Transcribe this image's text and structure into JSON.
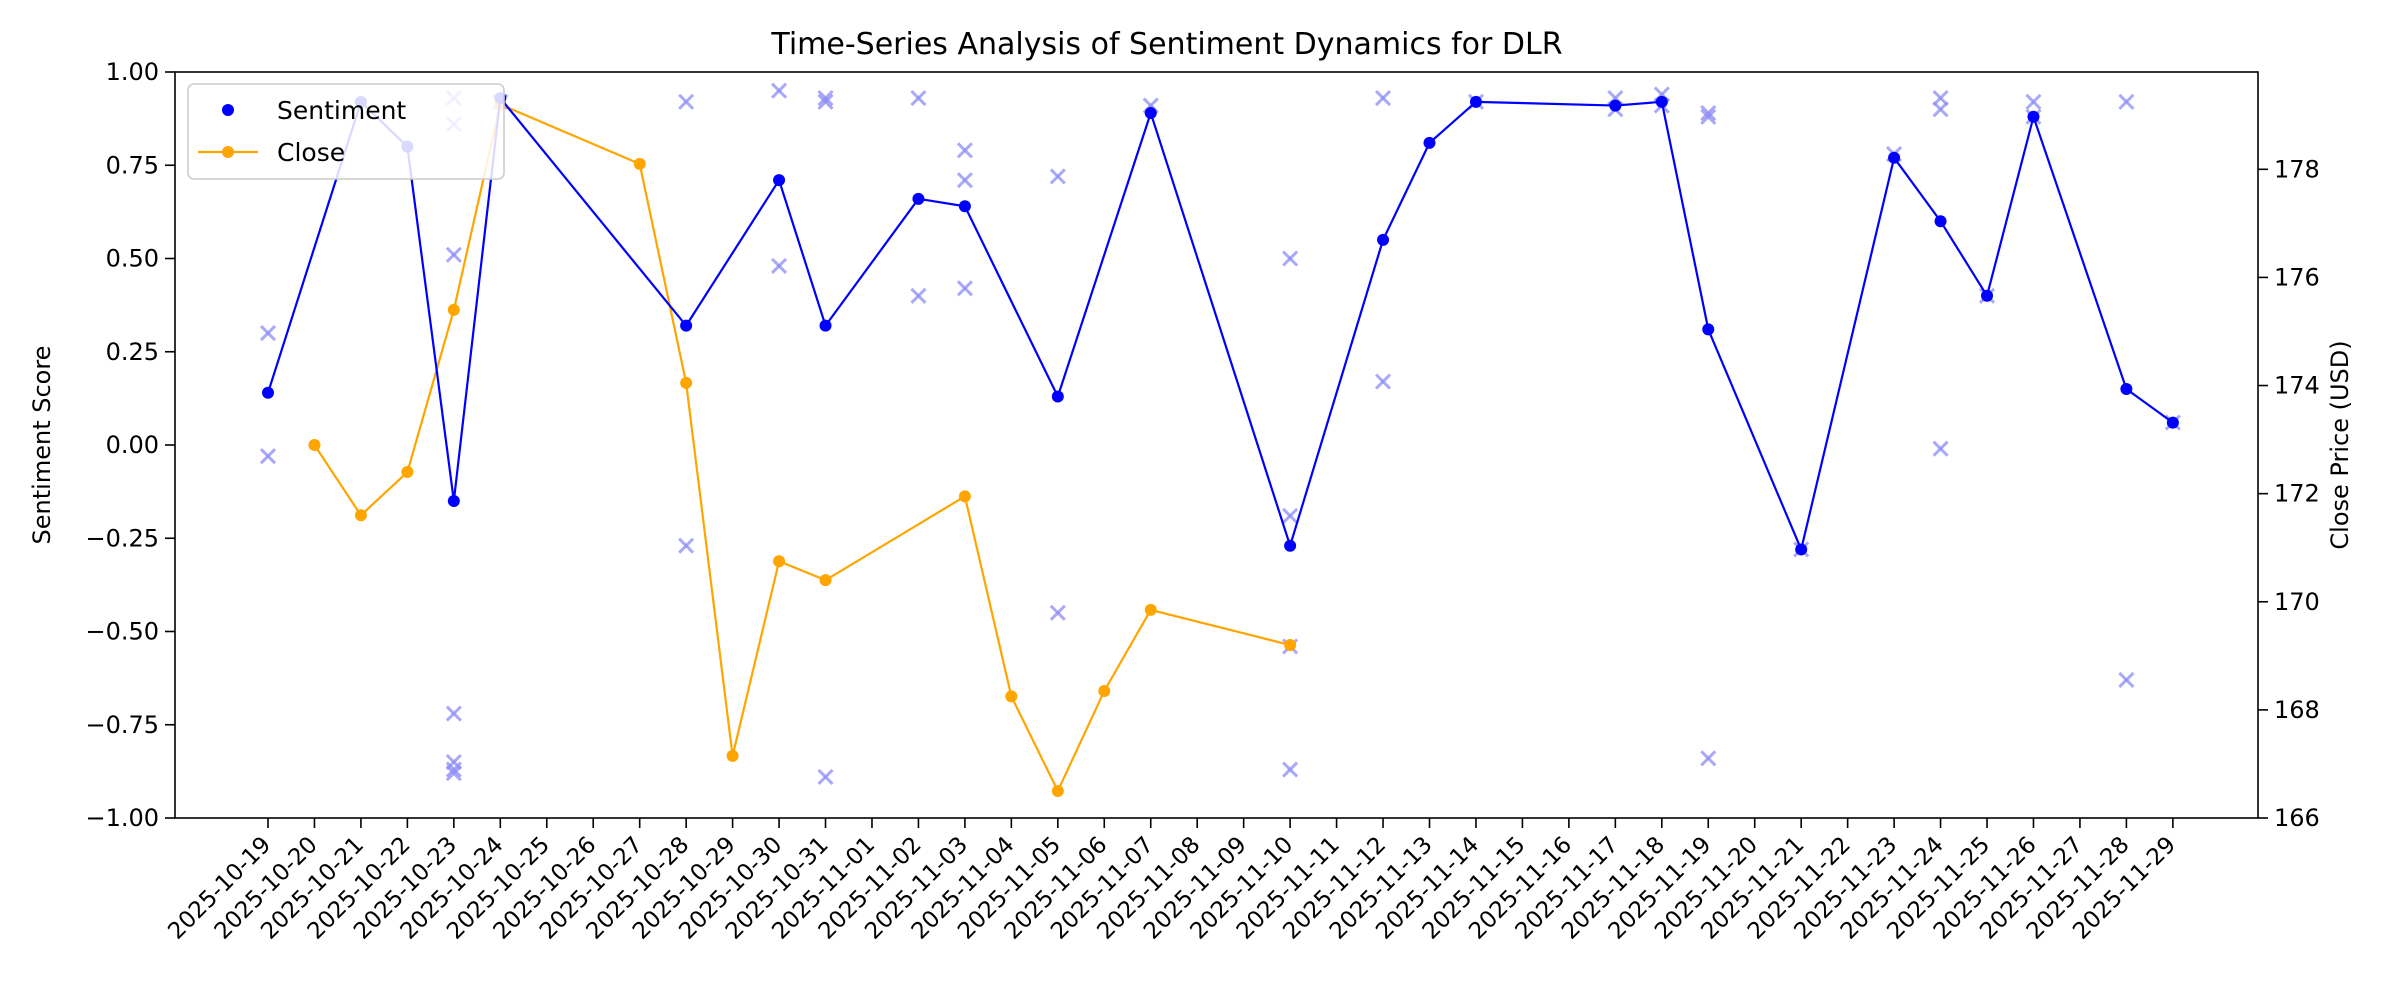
{
  "chart_data": {
    "type": "line",
    "title": "Time-Series Analysis of Sentiment Dynamics for DLR",
    "ylabel": "Sentiment Score",
    "ylabel_right": "Close Price (USD)",
    "ylim": [
      -1.0,
      1.0
    ],
    "ylim_right": [
      166,
      179.8
    ],
    "yticks": [
      "−1.00",
      "−0.75",
      "−0.50",
      "−0.25",
      "0.00",
      "0.25",
      "0.50",
      "0.75",
      "1.00"
    ],
    "yticks_right": [
      "166",
      "168",
      "170",
      "172",
      "174",
      "176",
      "178"
    ],
    "legend_position": "top-left",
    "colors": {
      "sentiment": "#0000ff",
      "close": "#ffa500",
      "raw": "#8c8cf5"
    },
    "x_labels": [
      "2025-10-19",
      "2025-10-20",
      "2025-10-21",
      "2025-10-22",
      "2025-10-23",
      "2025-10-24",
      "2025-10-25",
      "2025-10-26",
      "2025-10-27",
      "2025-10-28",
      "2025-10-29",
      "2025-10-30",
      "2025-10-31",
      "2025-11-01",
      "2025-11-02",
      "2025-11-03",
      "2025-11-04",
      "2025-11-05",
      "2025-11-06",
      "2025-11-07",
      "2025-11-08",
      "2025-11-09",
      "2025-11-10",
      "2025-11-11",
      "2025-11-12",
      "2025-11-13",
      "2025-11-14",
      "2025-11-15",
      "2025-11-16",
      "2025-11-17",
      "2025-11-18",
      "2025-11-19",
      "2025-11-20",
      "2025-11-21",
      "2025-11-22",
      "2025-11-23",
      "2025-11-24",
      "2025-11-25",
      "2025-11-26",
      "2025-11-27",
      "2025-11-28",
      "2025-11-29"
    ],
    "series": [
      {
        "name": "Sentiment",
        "marker": "circle",
        "points": [
          {
            "x": "2025-10-19",
            "y": 0.14
          },
          {
            "x": "2025-10-21",
            "y": 0.92
          },
          {
            "x": "2025-10-22",
            "y": 0.8
          },
          {
            "x": "2025-10-23",
            "y": -0.15
          },
          {
            "x": "2025-10-24",
            "y": 0.93
          },
          {
            "x": "2025-10-28",
            "y": 0.32
          },
          {
            "x": "2025-10-30",
            "y": 0.71
          },
          {
            "x": "2025-10-31",
            "y": 0.32
          },
          {
            "x": "2025-11-02",
            "y": 0.66
          },
          {
            "x": "2025-11-03",
            "y": 0.64
          },
          {
            "x": "2025-11-05",
            "y": 0.13
          },
          {
            "x": "2025-11-07",
            "y": 0.89
          },
          {
            "x": "2025-11-10",
            "y": -0.27
          },
          {
            "x": "2025-11-12",
            "y": 0.55
          },
          {
            "x": "2025-11-13",
            "y": 0.81
          },
          {
            "x": "2025-11-14",
            "y": 0.92
          },
          {
            "x": "2025-11-17",
            "y": 0.91
          },
          {
            "x": "2025-11-18",
            "y": 0.92
          },
          {
            "x": "2025-11-19",
            "y": 0.31
          },
          {
            "x": "2025-11-21",
            "y": -0.28
          },
          {
            "x": "2025-11-23",
            "y": 0.77
          },
          {
            "x": "2025-11-24",
            "y": 0.6
          },
          {
            "x": "2025-11-25",
            "y": 0.4
          },
          {
            "x": "2025-11-26",
            "y": 0.88
          },
          {
            "x": "2025-11-28",
            "y": 0.15
          },
          {
            "x": "2025-11-29",
            "y": 0.06
          }
        ]
      },
      {
        "name": "Close",
        "marker": "circle",
        "axis": "right",
        "points": [
          {
            "x": "2025-10-20",
            "y": 172.9
          },
          {
            "x": "2025-10-21",
            "y": 171.6
          },
          {
            "x": "2025-10-22",
            "y": 172.4
          },
          {
            "x": "2025-10-23",
            "y": 175.4
          },
          {
            "x": "2025-10-24",
            "y": 179.2
          },
          {
            "x": "2025-10-27",
            "y": 178.1
          },
          {
            "x": "2025-10-28",
            "y": 174.05
          },
          {
            "x": "2025-10-29",
            "y": 167.15
          },
          {
            "x": "2025-10-30",
            "y": 170.75
          },
          {
            "x": "2025-10-31",
            "y": 170.4
          },
          {
            "x": "2025-11-03",
            "y": 171.95
          },
          {
            "x": "2025-11-04",
            "y": 168.25
          },
          {
            "x": "2025-11-05",
            "y": 166.5
          },
          {
            "x": "2025-11-06",
            "y": 168.35
          },
          {
            "x": "2025-11-07",
            "y": 169.85
          },
          {
            "x": "2025-11-10",
            "y": 169.2
          }
        ]
      },
      {
        "marker": "x",
        "points": [
          {
            "x": "2025-10-19",
            "y": 0.3
          },
          {
            "x": "2025-10-19",
            "y": -0.03
          },
          {
            "x": "2025-10-23",
            "y": 0.93
          },
          {
            "x": "2025-10-23",
            "y": 0.86
          },
          {
            "x": "2025-10-23",
            "y": 0.51
          },
          {
            "x": "2025-10-23",
            "y": -0.72
          },
          {
            "x": "2025-10-23",
            "y": -0.85
          },
          {
            "x": "2025-10-23",
            "y": -0.87
          },
          {
            "x": "2025-10-23",
            "y": -0.88
          },
          {
            "x": "2025-10-24",
            "y": 0.92
          },
          {
            "x": "2025-10-28",
            "y": 0.92
          },
          {
            "x": "2025-10-28",
            "y": -0.27
          },
          {
            "x": "2025-10-30",
            "y": 0.95
          },
          {
            "x": "2025-10-30",
            "y": 0.48
          },
          {
            "x": "2025-10-31",
            "y": 0.93
          },
          {
            "x": "2025-10-31",
            "y": 0.92
          },
          {
            "x": "2025-10-31",
            "y": -0.89
          },
          {
            "x": "2025-11-02",
            "y": 0.93
          },
          {
            "x": "2025-11-02",
            "y": 0.4
          },
          {
            "x": "2025-11-03",
            "y": 0.79
          },
          {
            "x": "2025-11-03",
            "y": 0.71
          },
          {
            "x": "2025-11-03",
            "y": 0.42
          },
          {
            "x": "2025-11-05",
            "y": 0.72
          },
          {
            "x": "2025-11-05",
            "y": -0.45
          },
          {
            "x": "2025-11-07",
            "y": 0.91
          },
          {
            "x": "2025-11-10",
            "y": 0.5
          },
          {
            "x": "2025-11-10",
            "y": -0.19
          },
          {
            "x": "2025-11-10",
            "y": -0.54
          },
          {
            "x": "2025-11-10",
            "y": -0.87
          },
          {
            "x": "2025-11-12",
            "y": 0.93
          },
          {
            "x": "2025-11-12",
            "y": 0.17
          },
          {
            "x": "2025-11-14",
            "y": 0.92
          },
          {
            "x": "2025-11-17",
            "y": 0.93
          },
          {
            "x": "2025-11-17",
            "y": 0.9
          },
          {
            "x": "2025-11-18",
            "y": 0.94
          },
          {
            "x": "2025-11-18",
            "y": 0.91
          },
          {
            "x": "2025-11-19",
            "y": 0.89
          },
          {
            "x": "2025-11-19",
            "y": 0.88
          },
          {
            "x": "2025-11-19",
            "y": -0.84
          },
          {
            "x": "2025-11-21",
            "y": -0.28
          },
          {
            "x": "2025-11-23",
            "y": 0.78
          },
          {
            "x": "2025-11-24",
            "y": 0.93
          },
          {
            "x": "2025-11-24",
            "y": 0.9
          },
          {
            "x": "2025-11-24",
            "y": -0.01
          },
          {
            "x": "2025-11-25",
            "y": 0.4
          },
          {
            "x": "2025-11-26",
            "y": 0.92
          },
          {
            "x": "2025-11-26",
            "y": 0.88
          },
          {
            "x": "2025-11-28",
            "y": 0.92
          },
          {
            "x": "2025-11-28",
            "y": -0.63
          },
          {
            "x": "2025-11-29",
            "y": 0.06
          }
        ]
      }
    ],
    "legend": [
      {
        "label": "Sentiment",
        "marker": "dot"
      },
      {
        "label": "Close",
        "marker": "line-dot"
      }
    ]
  }
}
